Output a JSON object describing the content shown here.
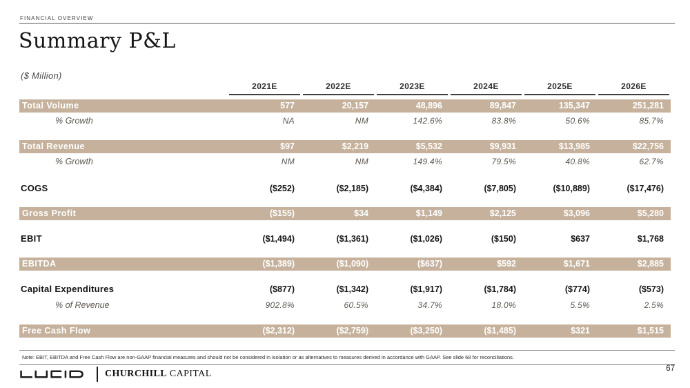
{
  "page": {
    "eyebrow": "FINANCIAL OVERVIEW",
    "title": "Summary P&L",
    "units_label": "($ Million)",
    "note": "Note: EBIT, EBITDA and Free Cash Flow are non-GAAP financial measures and should not be considered in isolation or as alternatives to measures derived in accordance with GAAP. See slide 68 for reconciliations.",
    "page_number": "67"
  },
  "footer": {
    "brand_left": "LUCID",
    "brand_right_bold": "CHURCHILL",
    "brand_right_regular": " CAPITAL"
  },
  "colors": {
    "band": "#c6b29c",
    "band_text": "#ffffff",
    "header_underline": "#3f3f3f"
  },
  "table": {
    "columns": [
      "2021E",
      "2022E",
      "2023E",
      "2024E",
      "2025E",
      "2026E"
    ],
    "rows": [
      {
        "label": "Total Volume",
        "style": "band",
        "values": [
          "577",
          "20,157",
          "48,896",
          "89,847",
          "135,347",
          "251,281"
        ]
      },
      {
        "label": "% Growth",
        "style": "pct",
        "values": [
          "NA",
          "NM",
          "142.6%",
          "83.8%",
          "50.6%",
          "85.7%"
        ]
      },
      {
        "style": "spacer"
      },
      {
        "label": "Total Revenue",
        "style": "band",
        "values": [
          "$97",
          "$2,219",
          "$5,532",
          "$9,931",
          "$13,985",
          "$22,756"
        ]
      },
      {
        "label": "% Growth",
        "style": "pct",
        "values": [
          "NM",
          "NM",
          "149.4%",
          "79.5%",
          "40.8%",
          "62.7%"
        ]
      },
      {
        "style": "spacer"
      },
      {
        "label": "COGS",
        "style": "plain",
        "values": [
          "($252)",
          "($2,185)",
          "($4,384)",
          "($7,805)",
          "($10,889)",
          "($17,476)"
        ]
      },
      {
        "style": "spacer"
      },
      {
        "label": "Gross Profit",
        "style": "band",
        "values": [
          "($155)",
          "$34",
          "$1,149",
          "$2,125",
          "$3,096",
          "$5,280"
        ]
      },
      {
        "style": "spacer"
      },
      {
        "label": "EBIT",
        "style": "plain",
        "values": [
          "($1,494)",
          "($1,361)",
          "($1,026)",
          "($150)",
          "$637",
          "$1,768"
        ]
      },
      {
        "style": "spacer"
      },
      {
        "label": "EBITDA",
        "style": "band",
        "values": [
          "($1,389)",
          "($1,090)",
          "($637)",
          "$592",
          "$1,671",
          "$2,885"
        ]
      },
      {
        "style": "spacer"
      },
      {
        "label": "Capital Expenditures",
        "style": "plain",
        "values": [
          "($877)",
          "($1,342)",
          "($1,917)",
          "($1,784)",
          "($774)",
          "($573)"
        ]
      },
      {
        "label": "% of Revenue",
        "style": "pct",
        "values": [
          "902.8%",
          "60.5%",
          "34.7%",
          "18.0%",
          "5.5%",
          "2.5%"
        ]
      },
      {
        "style": "spacer"
      },
      {
        "label": "Free Cash Flow",
        "style": "band",
        "values": [
          "($2,312)",
          "($2,759)",
          "($3,250)",
          "($1,485)",
          "$321",
          "$1,515"
        ]
      }
    ]
  }
}
